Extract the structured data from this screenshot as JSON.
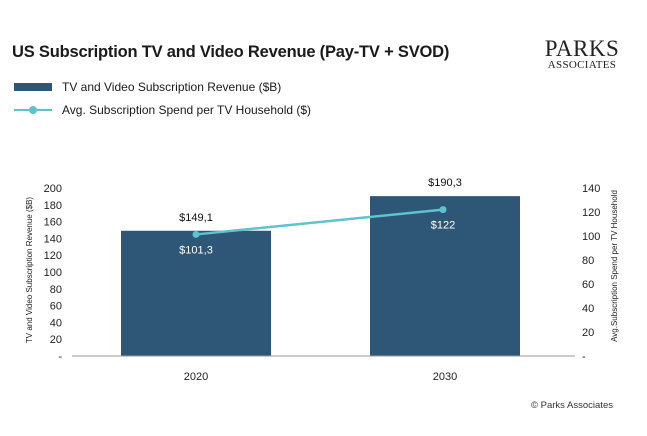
{
  "colors": {
    "bar": "#2e5677",
    "line": "#5ec3cc",
    "axis": "#222222"
  },
  "logo": {
    "line1": "PARKS",
    "line2": "ASSOCIATES"
  },
  "copyright": "© Parks Associates",
  "chart_data": {
    "type": "bar",
    "title": "US Subscription TV and Video Revenue (Pay-TV + SVOD)",
    "categories": [
      "2020",
      "2030"
    ],
    "series": [
      {
        "name": "TV and Video Subscription Revenue ($B)",
        "type": "bar",
        "axis": "left",
        "values": [
          149.1,
          190.3
        ],
        "labels": [
          "$149,1",
          "$190,3"
        ]
      },
      {
        "name": "Avg. Subscription Spend per TV Household ($)",
        "type": "line",
        "axis": "right",
        "values": [
          101.3,
          122
        ],
        "labels": [
          "$101,3",
          "$122"
        ]
      }
    ],
    "y_left": {
      "label": "TV and Video Subscription Revenue ($B)",
      "ylim": [
        0,
        200
      ],
      "ticks": [
        0,
        20,
        40,
        60,
        80,
        100,
        120,
        140,
        160,
        180,
        200
      ],
      "tick_labels": [
        "-",
        "20",
        "40",
        "60",
        "80",
        "100",
        "120",
        "140",
        "160",
        "180",
        "200"
      ]
    },
    "y_right": {
      "label": "Avg.Subscription Spend per TV Household",
      "ylim": [
        0,
        140
      ],
      "ticks": [
        0,
        20,
        40,
        60,
        80,
        100,
        120,
        140
      ],
      "tick_labels": [
        "-",
        "20",
        "40",
        "60",
        "80",
        "100",
        "120",
        "140"
      ]
    },
    "grid": false,
    "legend_position": "top-left"
  }
}
